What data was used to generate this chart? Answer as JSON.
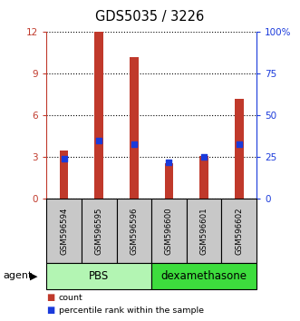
{
  "title": "GDS5035 / 3226",
  "samples": [
    "GSM596594",
    "GSM596595",
    "GSM596596",
    "GSM596600",
    "GSM596601",
    "GSM596602"
  ],
  "counts": [
    3.5,
    12.0,
    10.2,
    2.6,
    3.1,
    7.2
  ],
  "percentiles": [
    24,
    35,
    33,
    22,
    25,
    33
  ],
  "ylim_left": [
    0,
    12
  ],
  "ylim_right": [
    0,
    100
  ],
  "yticks_left": [
    0,
    3,
    6,
    9,
    12
  ],
  "ytick_labels_left": [
    "0",
    "3",
    "6",
    "9",
    "12"
  ],
  "yticks_right": [
    0,
    25,
    50,
    75,
    100
  ],
  "ytick_labels_right": [
    "0",
    "25",
    "50",
    "75",
    "100%"
  ],
  "bar_color": "#c0392b",
  "dot_color": "#1a3adb",
  "groups": [
    {
      "label": "PBS",
      "color": "#b3f5b3",
      "start": 0,
      "end": 3
    },
    {
      "label": "dexamethasone",
      "color": "#3ddd3d",
      "start": 3,
      "end": 6
    }
  ],
  "agent_label": "agent",
  "legend_items": [
    {
      "label": "count",
      "color": "#c0392b"
    },
    {
      "label": "percentile rank within the sample",
      "color": "#1a3adb"
    }
  ],
  "bar_width": 0.25,
  "sample_box_color": "#c8c8c8"
}
